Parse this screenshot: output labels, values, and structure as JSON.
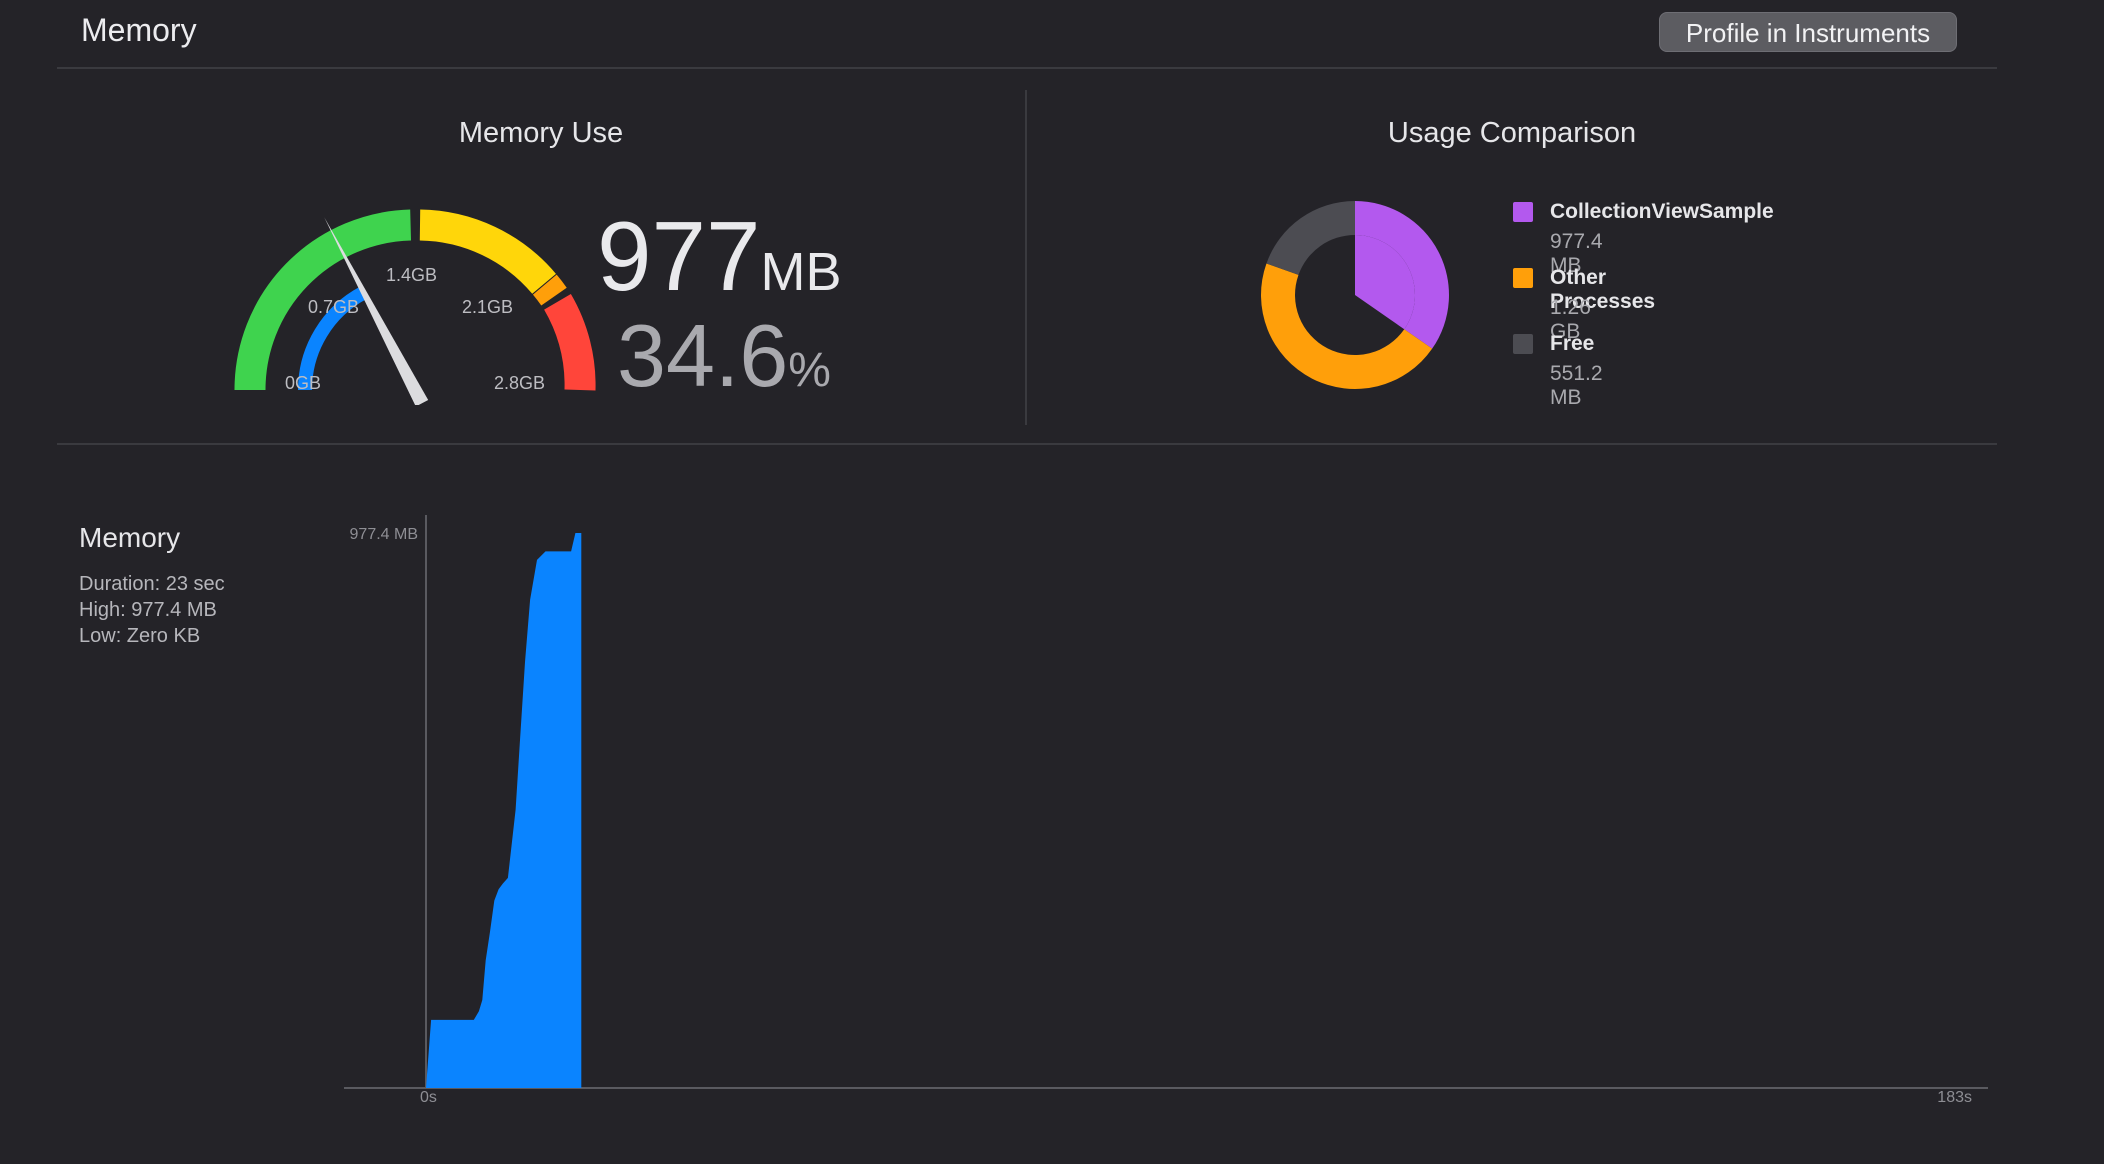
{
  "header": {
    "title": "Memory",
    "profile_button": "Profile in Instruments"
  },
  "memory_use": {
    "title": "Memory Use",
    "gauge_labels": [
      "0GB",
      "0.7GB",
      "1.4GB",
      "2.1GB",
      "2.8GB"
    ],
    "value": "977",
    "unit": "MB",
    "percent": "34.6",
    "percent_unit": "%",
    "level_fraction": 0.346
  },
  "usage_comparison": {
    "title": "Usage Comparison",
    "items": [
      {
        "name": "CollectionViewSample",
        "value": "977.4 MB",
        "color": "#b359ee"
      },
      {
        "name": "Other Processes",
        "value": "1.26 GB",
        "color": "#ff9f0a"
      },
      {
        "name": "Free",
        "value": "551.2 MB",
        "color": "#4c4c52"
      }
    ]
  },
  "graph": {
    "title": "Memory",
    "duration": "Duration: 23 sec",
    "high": "High: 977.4 MB",
    "low": "Low: Zero KB",
    "y_max_label": "977.4 MB",
    "x_start_label": "0s",
    "x_end_label": "183s"
  },
  "chart_data": {
    "type": "area",
    "x_unit": "s",
    "y_unit": "MB",
    "xlim": [
      0,
      183
    ],
    "ylim": [
      0,
      977.4
    ],
    "x": [
      0,
      0.6,
      5,
      5.6,
      6.2,
      6.6,
      7,
      7.5,
      8,
      8.5,
      9,
      9.6,
      10.5,
      11,
      11.6,
      12.2,
      13,
      14,
      14.6,
      15.5,
      16.2,
      17,
      17.5,
      18.2
    ],
    "y": [
      0,
      120,
      120,
      120,
      135,
      155,
      225,
      275,
      330,
      350,
      360,
      370,
      490,
      610,
      750,
      860,
      930,
      945,
      945,
      945,
      945,
      945,
      977.4,
      977.4
    ],
    "color": "#0a84ff"
  }
}
